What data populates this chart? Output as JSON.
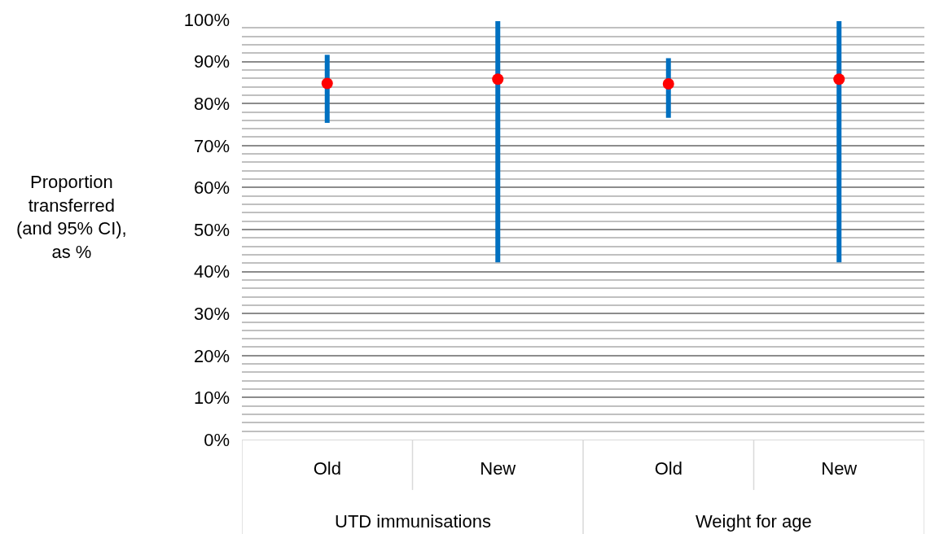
{
  "chart_data": {
    "type": "scatter",
    "ylabel": "Proportion\ntransferred\n(and 95% CI),\nas %",
    "categories": [
      "Old",
      "New",
      "Old",
      "New"
    ],
    "annotations": [
      "UTD immunisations",
      "Weight for age"
    ],
    "series": [
      {
        "color": "#ff0000",
        "values": [
          84.8,
          85.8,
          84.7,
          85.8
        ],
        "errors": [
          [
            75.4,
            91.6
          ],
          [
            42.2,
            99.6
          ],
          [
            76.6,
            90.8
          ],
          [
            42.2,
            99.6
          ]
        ]
      }
    ],
    "ylim": [
      0,
      100
    ],
    "yticks": [
      {
        "value": 0,
        "label": "0%"
      },
      {
        "value": 10,
        "label": "10%"
      },
      {
        "value": 20,
        "label": "20%"
      },
      {
        "value": 30,
        "label": "30%"
      },
      {
        "value": 40,
        "label": "40%"
      },
      {
        "value": 50,
        "label": "50%"
      },
      {
        "value": 60,
        "label": "60%"
      },
      {
        "value": 70,
        "label": "70%"
      },
      {
        "value": 80,
        "label": "80%"
      },
      {
        "value": 90,
        "label": "90%"
      },
      {
        "value": 100,
        "label": "100%"
      }
    ],
    "grid": "y",
    "marker": "circle"
  }
}
